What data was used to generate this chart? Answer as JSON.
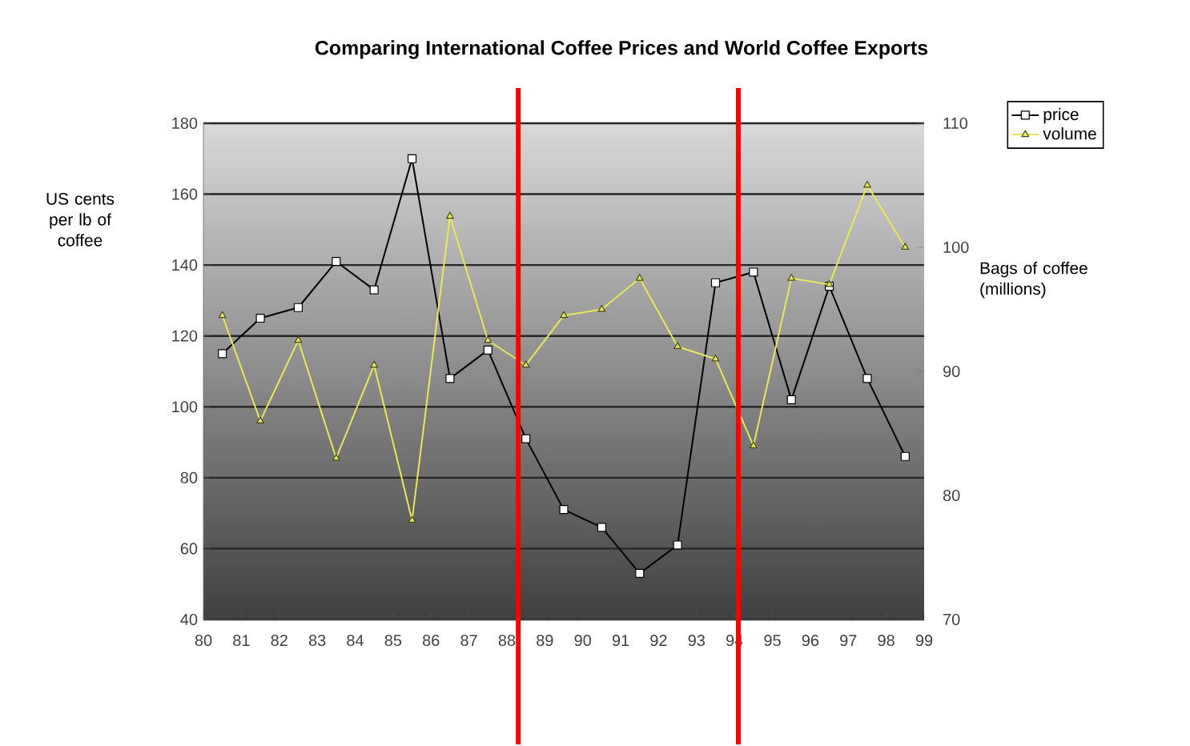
{
  "chart_data": {
    "type": "line",
    "title": "Comparing International Coffee Prices and World Coffee Exports",
    "ylabel": "US cents per lb of coffee",
    "y2label": "Bags of coffee (millions)",
    "x": [
      80.5,
      81.5,
      82.5,
      83.5,
      84.5,
      85.5,
      86.5,
      87.5,
      88.5,
      89.5,
      90.5,
      91.5,
      92.5,
      93.5,
      94.5,
      95.5,
      96.5,
      97.5,
      98.5
    ],
    "xlim": [
      80,
      99
    ],
    "xticks": [
      80,
      81,
      82,
      83,
      84,
      85,
      86,
      87,
      88,
      89,
      90,
      91,
      92,
      93,
      94,
      95,
      96,
      97,
      98,
      99
    ],
    "ylim": [
      40,
      180
    ],
    "yticks": [
      40,
      60,
      80,
      100,
      120,
      140,
      160,
      180
    ],
    "y2lim": [
      70,
      110
    ],
    "y2ticks": [
      70,
      80,
      90,
      100,
      110
    ],
    "series": [
      {
        "name": "price",
        "color": "#000000",
        "marker": "square",
        "values": [
          115,
          125,
          128,
          141,
          133,
          170,
          108,
          116,
          91,
          71,
          66,
          53,
          61,
          135,
          138,
          102,
          134,
          108,
          86
        ]
      },
      {
        "name": "volume",
        "color": "#e8e85a",
        "marker": "triangle",
        "axis": "y2",
        "values": [
          94.5,
          86,
          92.5,
          83,
          90.5,
          78,
          102.5,
          92.5,
          90.5,
          94.5,
          95,
          97.5,
          92,
          91,
          84,
          97.5,
          97,
          105,
          100
        ]
      }
    ],
    "ref_lines": [
      {
        "axis": "x",
        "value": 88.3,
        "color": "#ff0000"
      },
      {
        "axis": "x",
        "value": 94.1,
        "color": "#ff0000"
      }
    ],
    "grid": "y",
    "legend": "top right"
  }
}
